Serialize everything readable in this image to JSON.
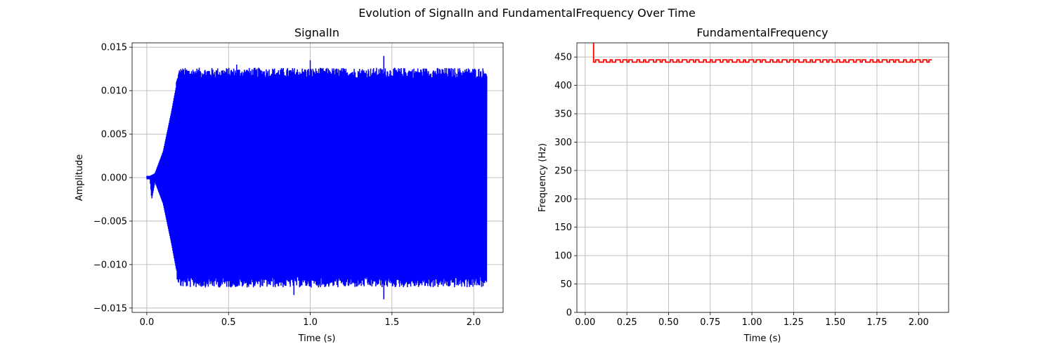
{
  "figure": {
    "suptitle": "Evolution of SignalIn and FundamentalFrequency Over Time"
  },
  "chart_data": [
    {
      "type": "line",
      "title": "SignalIn",
      "xlabel": "Time (s)",
      "ylabel": "Amplitude",
      "xlim": [
        -0.09,
        2.18
      ],
      "ylim": [
        -0.0155,
        0.0155
      ],
      "xticks": [
        0.0,
        0.5,
        1.0,
        1.5,
        2.0
      ],
      "xtick_labels": [
        "0.0",
        "0.5",
        "1.0",
        "1.5",
        "2.0"
      ],
      "yticks": [
        -0.015,
        -0.01,
        -0.005,
        0.0,
        0.005,
        0.01,
        0.015
      ],
      "ytick_labels": [
        "−0.015",
        "−0.010",
        "−0.005",
        "0.000",
        "0.005",
        "0.010",
        "0.015"
      ],
      "grid": true,
      "color": "#0000ff",
      "series": [
        {
          "envelope": {
            "t": [
              0.0,
              0.02,
              0.03,
              0.05,
              0.1,
              0.15,
              0.18,
              0.2,
              2.08
            ],
            "upper": [
              0.0002,
              0.0002,
              0.0003,
              0.0005,
              0.003,
              0.0075,
              0.0105,
              0.0118,
              0.0118
            ],
            "lower": [
              -0.0002,
              -0.0002,
              -0.0025,
              -0.0005,
              -0.003,
              -0.0075,
              -0.0105,
              -0.0118,
              -0.0118
            ]
          },
          "peaks": [
            0.013,
            0.0135,
            0.014
          ],
          "troughs": [
            -0.0135,
            -0.014
          ]
        }
      ]
    },
    {
      "type": "line",
      "title": "FundamentalFrequency",
      "xlabel": "Time (s)",
      "ylabel": "Frequency (Hz)",
      "xlim": [
        -0.05,
        2.18
      ],
      "ylim": [
        0,
        475
      ],
      "xticks": [
        0.0,
        0.25,
        0.5,
        0.75,
        1.0,
        1.25,
        1.5,
        1.75,
        2.0
      ],
      "xtick_labels": [
        "0.00",
        "0.25",
        "0.50",
        "0.75",
        "1.00",
        "1.25",
        "1.50",
        "1.75",
        "2.00"
      ],
      "yticks": [
        0,
        50,
        100,
        150,
        200,
        250,
        300,
        350,
        400,
        450
      ],
      "ytick_labels": [
        "0",
        "50",
        "100",
        "150",
        "200",
        "250",
        "300",
        "350",
        "400",
        "450"
      ],
      "grid": true,
      "color": "#ff0000",
      "series": [
        {
          "x": [
            0.04,
            0.05,
            0.05,
            2.08
          ],
          "y": [
            480,
            480,
            441,
            441
          ],
          "step_low": 441,
          "step_high": 445
        }
      ]
    }
  ]
}
